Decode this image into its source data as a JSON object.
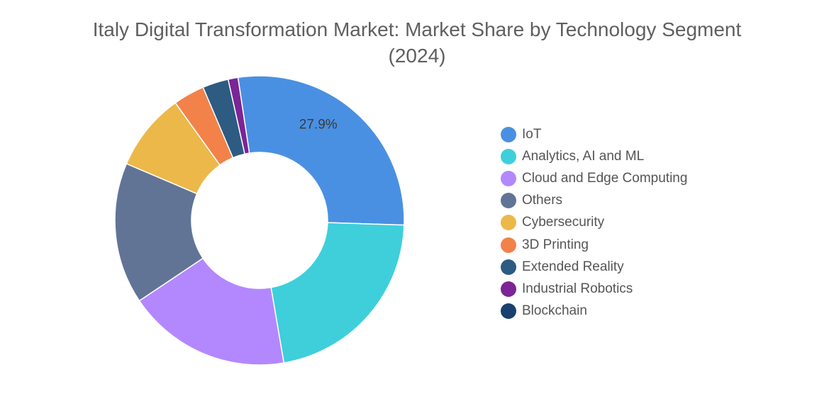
{
  "chart_data": {
    "type": "pie",
    "variant": "donut",
    "title": "Italy Digital Transformation Market: Market Share by Technology Segment (2024)",
    "title_lines": [
      "Italy Digital Transformation Market: Market Share by Technology Segment",
      "(2024)"
    ],
    "categories": [
      "IoT",
      "Analytics, AI and ML",
      "Cloud and Edge Computing",
      "Others",
      "Cybersecurity",
      "3D Printing",
      "Extended Reality",
      "Industrial Robotics",
      "Blockchain"
    ],
    "values": [
      27.9,
      21.8,
      18.3,
      15.8,
      8.7,
      3.5,
      2.9,
      1.1,
      0.0
    ],
    "colors": [
      "#4a90e2",
      "#3ecfdb",
      "#b388ff",
      "#627496",
      "#ecb84a",
      "#f2824a",
      "#2d5b82",
      "#7b2596",
      "#19406e"
    ],
    "data_labels": [
      {
        "slice": "IoT",
        "text": "27.9%"
      }
    ],
    "legend_position": "right",
    "start_angle": "top, clockwise from IoT"
  }
}
